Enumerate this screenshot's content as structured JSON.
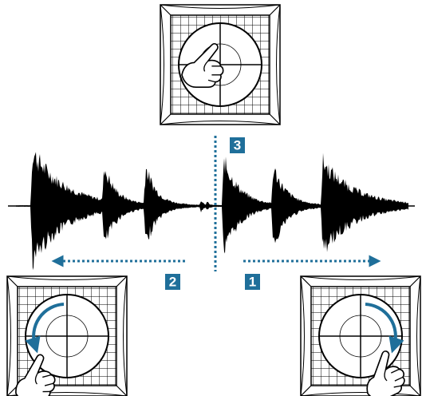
{
  "steps": [
    {
      "label": "1"
    },
    {
      "label": "2"
    },
    {
      "label": "3"
    }
  ]
}
